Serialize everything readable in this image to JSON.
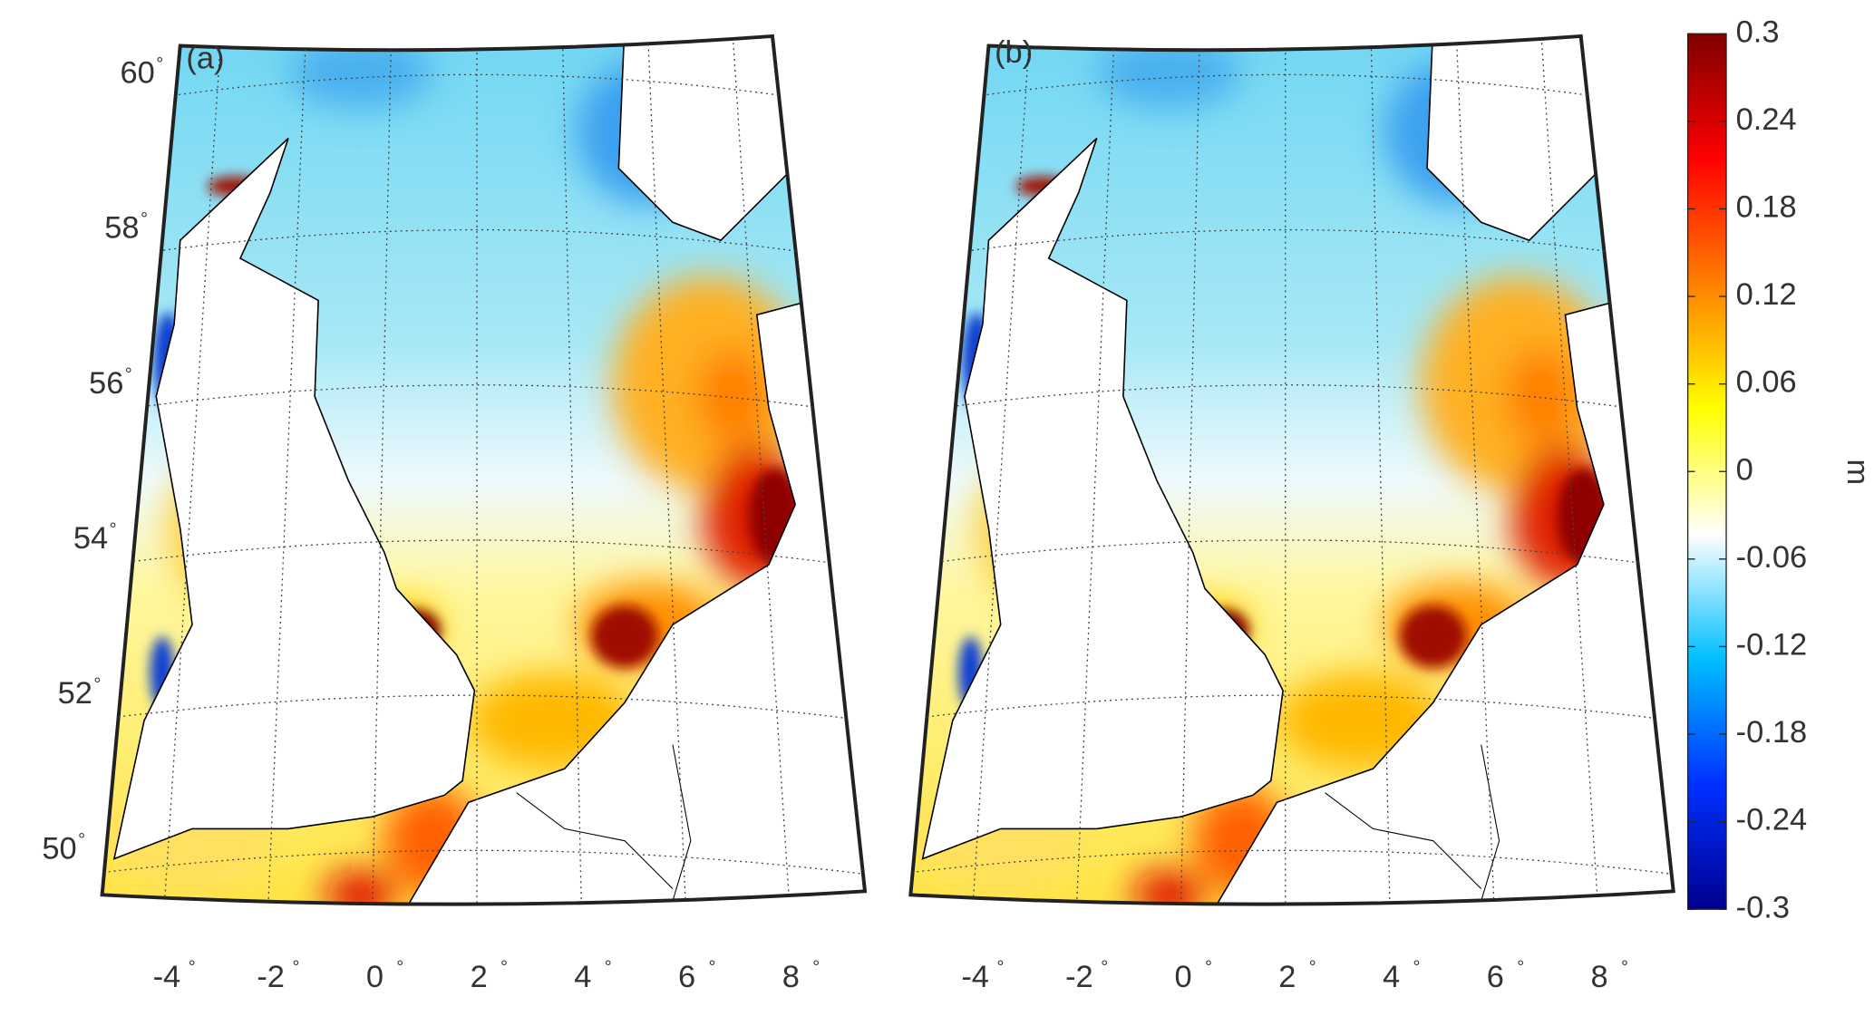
{
  "panels": [
    {
      "label": "(a)"
    },
    {
      "label": "(b)"
    }
  ],
  "lat_ticks": [
    50,
    52,
    54,
    56,
    58,
    60
  ],
  "lon_ticks": [
    -4,
    -2,
    0,
    2,
    4,
    6,
    8
  ],
  "degree_mark": "°",
  "colorbar": {
    "lim": [
      -0.3,
      0.3
    ],
    "ticks": [
      -0.3,
      -0.24,
      -0.18,
      -0.12,
      -0.06,
      0,
      0.06,
      0.12,
      0.18,
      0.24,
      0.3
    ],
    "unit": "m",
    "colors": [
      "#00008f",
      "#0030ff",
      "#00bfff",
      "#ffffff",
      "#ffff00",
      "#ff8000",
      "#ff0000",
      "#800000"
    ]
  }
}
